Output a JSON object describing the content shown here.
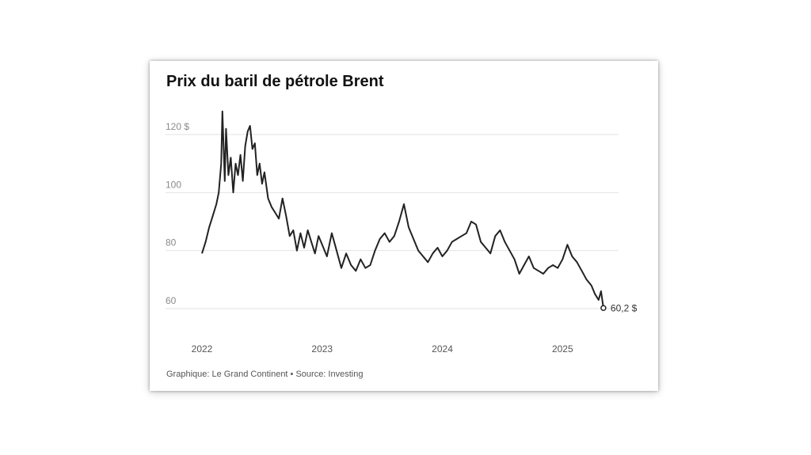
{
  "chart_data": {
    "type": "line",
    "title": "Prix du baril de pétrole Brent",
    "xlabel": "",
    "ylabel": "",
    "y_ticks": [
      {
        "value": 60,
        "label": "60"
      },
      {
        "value": 80,
        "label": "80"
      },
      {
        "value": 100,
        "label": "100"
      },
      {
        "value": 120,
        "label": "120 $"
      }
    ],
    "x_ticks": [
      {
        "value": 2022.0,
        "label": "2022"
      },
      {
        "value": 2023.0,
        "label": "2023"
      },
      {
        "value": 2024.0,
        "label": "2024"
      },
      {
        "value": 2025.0,
        "label": "2025"
      }
    ],
    "xlim": [
      2022.0,
      2025.4
    ],
    "ylim": [
      55,
      130
    ],
    "grid": true,
    "legend": "none",
    "end_label": "60,2 $",
    "line_color": "#222222",
    "series": [
      {
        "x": [
          2022.0,
          2022.03,
          2022.06,
          2022.09,
          2022.12,
          2022.14,
          2022.16,
          2022.17,
          2022.19,
          2022.2,
          2022.22,
          2022.24,
          2022.26,
          2022.28,
          2022.3,
          2022.32,
          2022.34,
          2022.36,
          2022.38,
          2022.4,
          2022.42,
          2022.44,
          2022.46,
          2022.48,
          2022.5,
          2022.52,
          2022.55,
          2022.58,
          2022.61,
          2022.64,
          2022.67,
          2022.7,
          2022.73,
          2022.76,
          2022.79,
          2022.82,
          2022.85,
          2022.88,
          2022.91,
          2022.94,
          2022.97,
          2023.0,
          2023.04,
          2023.08,
          2023.12,
          2023.16,
          2023.2,
          2023.24,
          2023.28,
          2023.32,
          2023.36,
          2023.4,
          2023.44,
          2023.48,
          2023.52,
          2023.56,
          2023.6,
          2023.64,
          2023.68,
          2023.72,
          2023.76,
          2023.8,
          2023.84,
          2023.88,
          2023.92,
          2023.96,
          2024.0,
          2024.04,
          2024.08,
          2024.12,
          2024.16,
          2024.2,
          2024.24,
          2024.28,
          2024.32,
          2024.36,
          2024.4,
          2024.44,
          2024.48,
          2024.52,
          2024.56,
          2024.6,
          2024.64,
          2024.68,
          2024.72,
          2024.76,
          2024.8,
          2024.84,
          2024.88,
          2024.92,
          2024.96,
          2025.0,
          2025.04,
          2025.08,
          2025.12,
          2025.16,
          2025.2,
          2025.24,
          2025.27,
          2025.3,
          2025.32,
          2025.34
        ],
        "y": [
          79,
          83,
          88,
          92,
          96,
          100,
          110,
          128,
          104,
          122,
          106,
          112,
          100,
          110,
          106,
          113,
          104,
          116,
          121,
          123,
          115,
          117,
          106,
          110,
          103,
          107,
          98,
          95,
          93,
          91,
          98,
          92,
          85,
          87,
          80,
          86,
          81,
          87,
          83,
          79,
          85,
          82,
          78,
          86,
          80,
          74,
          79,
          75,
          73,
          77,
          74,
          75,
          80,
          84,
          86,
          83,
          85,
          90,
          96,
          88,
          84,
          80,
          78,
          76,
          79,
          81,
          78,
          80,
          83,
          84,
          85,
          86,
          90,
          89,
          83,
          81,
          79,
          85,
          87,
          83,
          80,
          77,
          72,
          75,
          78,
          74,
          73,
          72,
          74,
          75,
          74,
          77,
          82,
          78,
          76,
          73,
          70,
          68,
          65,
          63,
          66,
          60.2
        ]
      }
    ]
  },
  "footer": "Graphique: Le Grand Continent • Source: Investing"
}
